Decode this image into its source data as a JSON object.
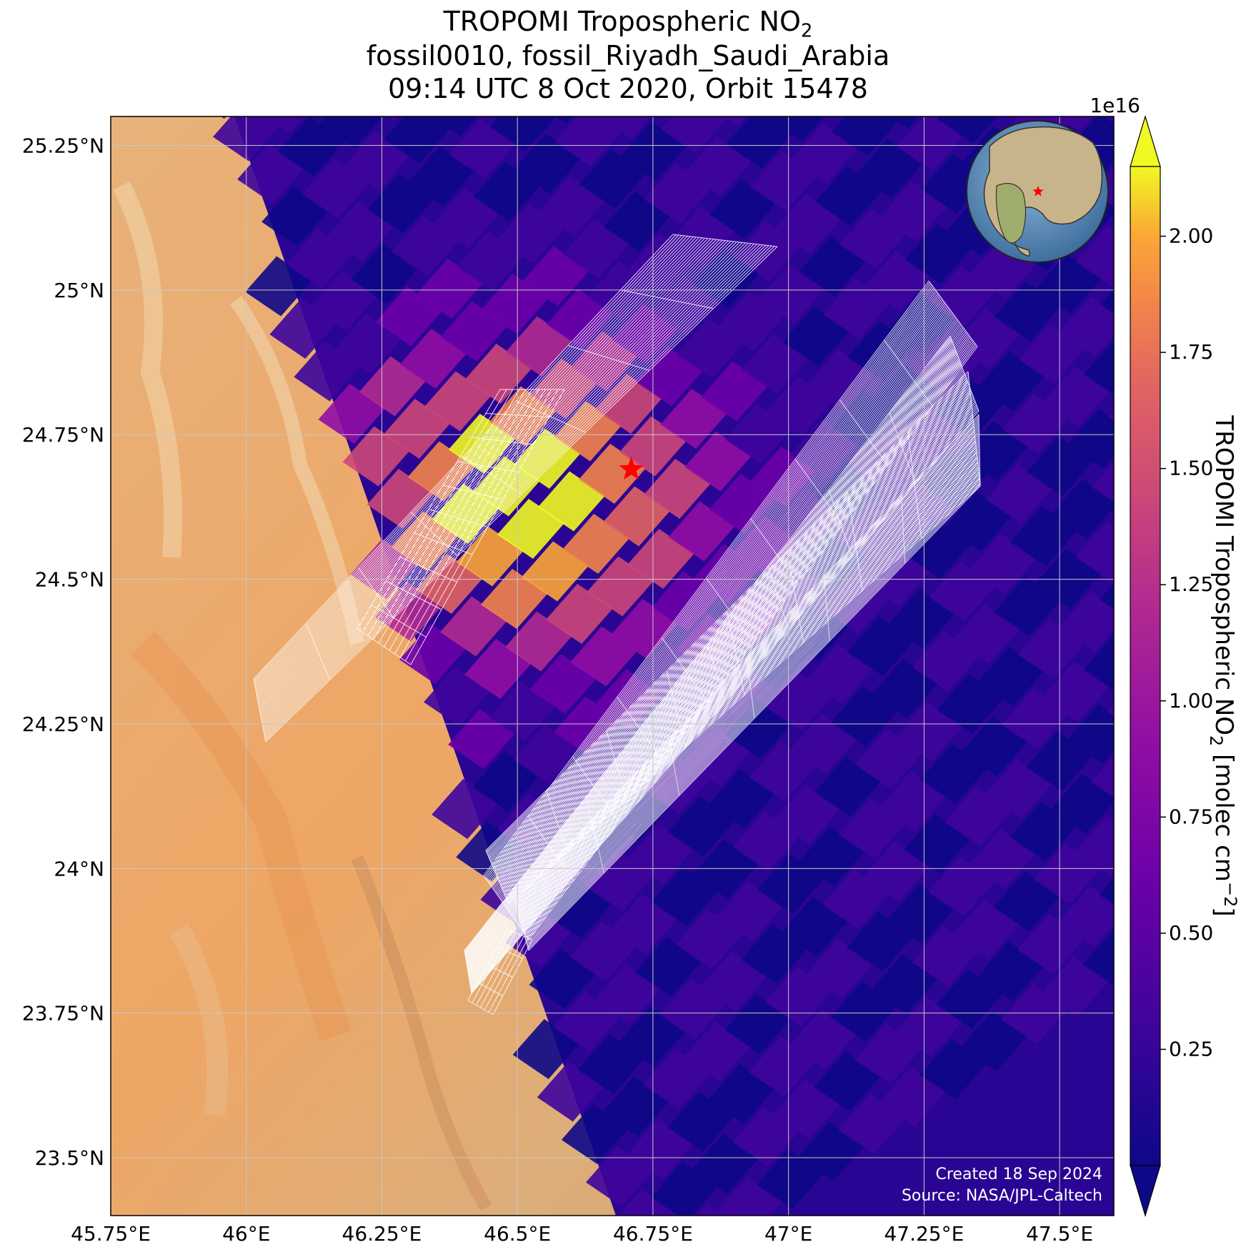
{
  "title": {
    "line1_prefix": "TROPOMI Tropospheric NO",
    "line1_sub": "2",
    "line2": "fossil0010, fossil_Riyadh_Saudi_Arabia",
    "line3": "09:14 UTC 8 Oct 2020, Orbit 15478"
  },
  "map": {
    "lon_range": [
      45.75,
      47.6
    ],
    "lat_range": [
      23.4,
      25.3
    ],
    "lon_ticks": [
      "45.75°E",
      "46°E",
      "46.25°E",
      "46.5°E",
      "46.75°E",
      "47°E",
      "47.25°E",
      "47.5°E"
    ],
    "lat_ticks": [
      "25.25°N",
      "25°N",
      "24.75°N",
      "24.5°N",
      "24.25°N",
      "24°N",
      "23.75°N",
      "23.5°N"
    ],
    "target": {
      "name": "fossil_Riyadh_Saudi_Arabia",
      "lon": 46.71,
      "lat": 24.69,
      "marker": "red-star"
    },
    "colors": {
      "star": "#ff0000",
      "grid": "#c8c8c8",
      "footprint": "#ffffff",
      "land": "#e6a868"
    }
  },
  "credits": {
    "created": "Created 18 Sep 2024",
    "source": "Source: NASA/JPL-Caltech"
  },
  "colorbar": {
    "exponent": "1e16",
    "ticks": [
      "0.25",
      "0.50",
      "0.75",
      "1.00",
      "1.25",
      "1.50",
      "1.75",
      "2.00"
    ],
    "label_prefix": "TROPOMI Tropospheric NO",
    "label_sub": "2",
    "label_suffix": " [molec cm",
    "label_sup": "−2",
    "label_end": "]",
    "colormap": "plasma",
    "range": [
      0.0,
      2.15
    ],
    "extend": "both"
  },
  "inset": {
    "type": "globe",
    "marker": "red-star",
    "icon": "globe-icon"
  }
}
